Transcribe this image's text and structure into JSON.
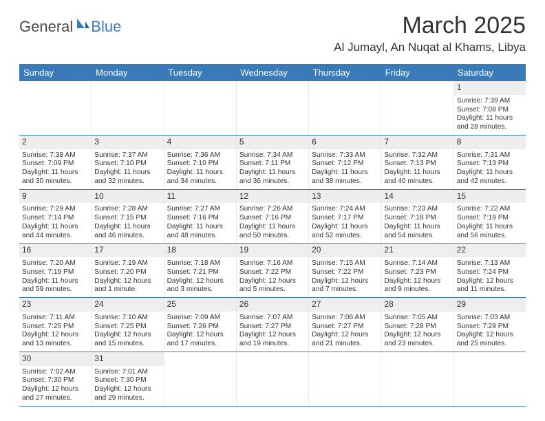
{
  "brand": {
    "part1": "General",
    "part2": "Blue"
  },
  "title": "March 2025",
  "location": "Al Jumayl, An Nuqat al Khams, Libya",
  "colors": {
    "header_bg": "#3a7ab8",
    "rule": "#3a7ab8",
    "daynum_bg": "#eeeeee"
  },
  "day_headers": [
    "Sunday",
    "Monday",
    "Tuesday",
    "Wednesday",
    "Thursday",
    "Friday",
    "Saturday"
  ],
  "weeks": [
    [
      null,
      null,
      null,
      null,
      null,
      null,
      {
        "n": "1",
        "sr": "7:39 AM",
        "ss": "7:08 PM",
        "dl": "11 hours and 28 minutes."
      }
    ],
    [
      {
        "n": "2",
        "sr": "7:38 AM",
        "ss": "7:09 PM",
        "dl": "11 hours and 30 minutes."
      },
      {
        "n": "3",
        "sr": "7:37 AM",
        "ss": "7:10 PM",
        "dl": "11 hours and 32 minutes."
      },
      {
        "n": "4",
        "sr": "7:36 AM",
        "ss": "7:10 PM",
        "dl": "11 hours and 34 minutes."
      },
      {
        "n": "5",
        "sr": "7:34 AM",
        "ss": "7:11 PM",
        "dl": "11 hours and 36 minutes."
      },
      {
        "n": "6",
        "sr": "7:33 AM",
        "ss": "7:12 PM",
        "dl": "11 hours and 38 minutes."
      },
      {
        "n": "7",
        "sr": "7:32 AM",
        "ss": "7:13 PM",
        "dl": "11 hours and 40 minutes."
      },
      {
        "n": "8",
        "sr": "7:31 AM",
        "ss": "7:13 PM",
        "dl": "11 hours and 42 minutes."
      }
    ],
    [
      {
        "n": "9",
        "sr": "7:29 AM",
        "ss": "7:14 PM",
        "dl": "11 hours and 44 minutes."
      },
      {
        "n": "10",
        "sr": "7:28 AM",
        "ss": "7:15 PM",
        "dl": "11 hours and 46 minutes."
      },
      {
        "n": "11",
        "sr": "7:27 AM",
        "ss": "7:16 PM",
        "dl": "11 hours and 48 minutes."
      },
      {
        "n": "12",
        "sr": "7:26 AM",
        "ss": "7:16 PM",
        "dl": "11 hours and 50 minutes."
      },
      {
        "n": "13",
        "sr": "7:24 AM",
        "ss": "7:17 PM",
        "dl": "11 hours and 52 minutes."
      },
      {
        "n": "14",
        "sr": "7:23 AM",
        "ss": "7:18 PM",
        "dl": "11 hours and 54 minutes."
      },
      {
        "n": "15",
        "sr": "7:22 AM",
        "ss": "7:19 PM",
        "dl": "11 hours and 56 minutes."
      }
    ],
    [
      {
        "n": "16",
        "sr": "7:20 AM",
        "ss": "7:19 PM",
        "dl": "11 hours and 59 minutes."
      },
      {
        "n": "17",
        "sr": "7:19 AM",
        "ss": "7:20 PM",
        "dl": "12 hours and 1 minute."
      },
      {
        "n": "18",
        "sr": "7:18 AM",
        "ss": "7:21 PM",
        "dl": "12 hours and 3 minutes."
      },
      {
        "n": "19",
        "sr": "7:16 AM",
        "ss": "7:22 PM",
        "dl": "12 hours and 5 minutes."
      },
      {
        "n": "20",
        "sr": "7:15 AM",
        "ss": "7:22 PM",
        "dl": "12 hours and 7 minutes."
      },
      {
        "n": "21",
        "sr": "7:14 AM",
        "ss": "7:23 PM",
        "dl": "12 hours and 9 minutes."
      },
      {
        "n": "22",
        "sr": "7:13 AM",
        "ss": "7:24 PM",
        "dl": "12 hours and 11 minutes."
      }
    ],
    [
      {
        "n": "23",
        "sr": "7:11 AM",
        "ss": "7:25 PM",
        "dl": "12 hours and 13 minutes."
      },
      {
        "n": "24",
        "sr": "7:10 AM",
        "ss": "7:25 PM",
        "dl": "12 hours and 15 minutes."
      },
      {
        "n": "25",
        "sr": "7:09 AM",
        "ss": "7:26 PM",
        "dl": "12 hours and 17 minutes."
      },
      {
        "n": "26",
        "sr": "7:07 AM",
        "ss": "7:27 PM",
        "dl": "12 hours and 19 minutes."
      },
      {
        "n": "27",
        "sr": "7:06 AM",
        "ss": "7:27 PM",
        "dl": "12 hours and 21 minutes."
      },
      {
        "n": "28",
        "sr": "7:05 AM",
        "ss": "7:28 PM",
        "dl": "12 hours and 23 minutes."
      },
      {
        "n": "29",
        "sr": "7:03 AM",
        "ss": "7:29 PM",
        "dl": "12 hours and 25 minutes."
      }
    ],
    [
      {
        "n": "30",
        "sr": "7:02 AM",
        "ss": "7:30 PM",
        "dl": "12 hours and 27 minutes."
      },
      {
        "n": "31",
        "sr": "7:01 AM",
        "ss": "7:30 PM",
        "dl": "12 hours and 29 minutes."
      },
      null,
      null,
      null,
      null,
      null
    ]
  ],
  "labels": {
    "sunrise": "Sunrise:",
    "sunset": "Sunset:",
    "daylight": "Daylight:"
  }
}
